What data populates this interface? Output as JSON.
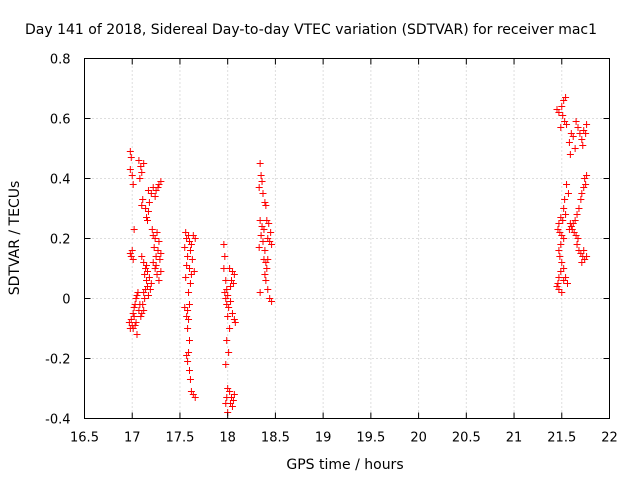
{
  "chart_data": {
    "type": "scatter",
    "title": "Day 141 of 2018, Sidereal Day-to-day VTEC variation (SDTVAR) for receiver mac1",
    "xlabel": "GPS time / hours",
    "ylabel": "SDTVAR / TECUs",
    "xlim": [
      16.5,
      22
    ],
    "ylim": [
      -0.4,
      0.8
    ],
    "xticks": [
      16.5,
      17,
      17.5,
      18,
      18.5,
      19,
      19.5,
      20,
      20.5,
      21,
      21.5,
      22
    ],
    "xtick_labels": [
      "16.5",
      "17",
      "17.5",
      "18",
      "18.5",
      "19",
      "19.5",
      "20",
      "20.5",
      "21",
      "21.5",
      "22"
    ],
    "yticks": [
      -0.4,
      -0.2,
      0,
      0.2,
      0.4,
      0.6,
      0.8
    ],
    "ytick_labels": [
      "-0.4",
      "-0.2",
      "0",
      "0.2",
      "0.4",
      "0.6",
      "0.8"
    ],
    "grid": true,
    "marker": "+",
    "color": "#ff0000",
    "series": [
      {
        "name": "SDTVAR",
        "points": [
          [
            16.98,
            0.49
          ],
          [
            16.99,
            0.47
          ],
          [
            16.98,
            0.43
          ],
          [
            17.0,
            0.41
          ],
          [
            17.01,
            0.38
          ],
          [
            17.07,
            0.46
          ],
          [
            17.09,
            0.44
          ],
          [
            17.1,
            0.42
          ],
          [
            17.12,
            0.45
          ],
          [
            17.08,
            0.4
          ],
          [
            17.11,
            0.33
          ],
          [
            17.1,
            0.31
          ],
          [
            17.14,
            0.3
          ],
          [
            17.17,
            0.29
          ],
          [
            17.15,
            0.27
          ],
          [
            17.16,
            0.26
          ],
          [
            17.18,
            0.32
          ],
          [
            17.17,
            0.36
          ],
          [
            17.2,
            0.35
          ],
          [
            17.22,
            0.37
          ],
          [
            17.25,
            0.36
          ],
          [
            17.27,
            0.37
          ],
          [
            17.28,
            0.38
          ],
          [
            17.3,
            0.39
          ],
          [
            17.24,
            0.34
          ],
          [
            17.21,
            0.23
          ],
          [
            17.22,
            0.21
          ],
          [
            17.24,
            0.2
          ],
          [
            17.26,
            0.22
          ],
          [
            17.28,
            0.19
          ],
          [
            17.23,
            0.17
          ],
          [
            17.25,
            0.14
          ],
          [
            17.27,
            0.16
          ],
          [
            17.29,
            0.13
          ],
          [
            17.3,
            0.15
          ],
          [
            17.22,
            0.12
          ],
          [
            17.24,
            0.1
          ],
          [
            17.26,
            0.08
          ],
          [
            17.28,
            0.06
          ],
          [
            17.3,
            0.09
          ],
          [
            17.2,
            0.05
          ],
          [
            17.25,
            0.11
          ],
          [
            17.18,
            0.07
          ],
          [
            17.19,
            0.03
          ],
          [
            17.17,
            0.01
          ],
          [
            16.99,
            0.14
          ],
          [
            17.0,
            0.16
          ],
          [
            16.98,
            0.15
          ],
          [
            17.02,
            0.23
          ],
          [
            17.01,
            0.13
          ],
          [
            17.1,
            0.14
          ],
          [
            17.12,
            0.12
          ],
          [
            17.14,
            0.1
          ],
          [
            17.13,
            0.08
          ],
          [
            17.15,
            0.11
          ],
          [
            17.16,
            0.09
          ],
          [
            17.15,
            0.06
          ],
          [
            17.16,
            0.04
          ],
          [
            17.14,
            0.03
          ],
          [
            17.12,
            0.02
          ],
          [
            17.13,
            0.0
          ],
          [
            17.11,
            -0.02
          ],
          [
            17.12,
            -0.04
          ],
          [
            17.1,
            -0.05
          ],
          [
            17.09,
            -0.06
          ],
          [
            17.05,
            0.01
          ],
          [
            17.06,
            0.02
          ],
          [
            17.04,
            0.0
          ],
          [
            17.03,
            -0.02
          ],
          [
            17.02,
            -0.03
          ],
          [
            17.01,
            -0.05
          ],
          [
            16.99,
            -0.07
          ],
          [
            17.0,
            -0.09
          ],
          [
            16.98,
            -0.1
          ],
          [
            16.97,
            -0.08
          ],
          [
            17.01,
            -0.1
          ],
          [
            17.03,
            -0.09
          ],
          [
            17.05,
            -0.12
          ],
          [
            17.02,
            -0.06
          ],
          [
            17.04,
            -0.08
          ],
          [
            17.07,
            -0.04
          ],
          [
            17.08,
            -0.02
          ],
          [
            17.56,
            0.22
          ],
          [
            17.57,
            0.2
          ],
          [
            17.59,
            0.21
          ],
          [
            17.6,
            0.19
          ],
          [
            17.62,
            0.18
          ],
          [
            17.64,
            0.21
          ],
          [
            17.66,
            0.2
          ],
          [
            17.61,
            0.16
          ],
          [
            17.63,
            0.13
          ],
          [
            17.58,
            0.14
          ],
          [
            17.55,
            0.17
          ],
          [
            17.57,
            0.11
          ],
          [
            17.6,
            0.1
          ],
          [
            17.62,
            0.08
          ],
          [
            17.65,
            0.09
          ],
          [
            17.56,
            0.07
          ],
          [
            17.61,
            0.05
          ],
          [
            17.59,
            0.02
          ],
          [
            17.6,
            -0.02
          ],
          [
            17.58,
            -0.04
          ],
          [
            17.57,
            -0.06
          ],
          [
            17.59,
            -0.07
          ],
          [
            17.58,
            -0.1
          ],
          [
            17.6,
            -0.14
          ],
          [
            17.59,
            -0.18
          ],
          [
            17.57,
            -0.19
          ],
          [
            17.58,
            -0.21
          ],
          [
            17.6,
            -0.24
          ],
          [
            17.61,
            -0.27
          ],
          [
            17.62,
            -0.31
          ],
          [
            17.64,
            -0.32
          ],
          [
            17.66,
            -0.33
          ],
          [
            17.55,
            -0.03
          ],
          [
            17.96,
            0.18
          ],
          [
            17.97,
            0.14
          ],
          [
            17.96,
            0.1
          ],
          [
            17.98,
            0.06
          ],
          [
            17.99,
            0.03
          ],
          [
            17.97,
            0.02
          ],
          [
            18.0,
            0.01
          ],
          [
            17.98,
            0.0
          ],
          [
            17.99,
            -0.02
          ],
          [
            18.01,
            -0.03
          ],
          [
            18.03,
            0.04
          ],
          [
            18.04,
            0.06
          ],
          [
            18.05,
            0.09
          ],
          [
            18.07,
            0.08
          ],
          [
            18.02,
            0.1
          ],
          [
            18.06,
            0.05
          ],
          [
            18.03,
            -0.01
          ],
          [
            18.05,
            -0.05
          ],
          [
            18.07,
            -0.07
          ],
          [
            18.08,
            -0.08
          ],
          [
            18.0,
            -0.06
          ],
          [
            18.02,
            -0.1
          ],
          [
            17.99,
            -0.14
          ],
          [
            18.01,
            -0.18
          ],
          [
            17.98,
            -0.22
          ],
          [
            18.0,
            -0.3
          ],
          [
            18.02,
            -0.31
          ],
          [
            18.04,
            -0.33
          ],
          [
            17.99,
            -0.33
          ],
          [
            18.03,
            -0.35
          ],
          [
            18.06,
            -0.34
          ],
          [
            18.05,
            -0.36
          ],
          [
            17.98,
            -0.35
          ],
          [
            18.07,
            -0.32
          ],
          [
            18.0,
            -0.38
          ],
          [
            18.34,
            0.45
          ],
          [
            18.35,
            0.41
          ],
          [
            18.36,
            0.39
          ],
          [
            18.33,
            0.37
          ],
          [
            18.37,
            0.35
          ],
          [
            18.39,
            0.32
          ],
          [
            18.4,
            0.31
          ],
          [
            18.34,
            0.26
          ],
          [
            18.36,
            0.24
          ],
          [
            18.38,
            0.23
          ],
          [
            18.41,
            0.26
          ],
          [
            18.43,
            0.25
          ],
          [
            18.45,
            0.22
          ],
          [
            18.42,
            0.2
          ],
          [
            18.44,
            0.19
          ],
          [
            18.46,
            0.18
          ],
          [
            18.35,
            0.21
          ],
          [
            18.37,
            0.19
          ],
          [
            18.33,
            0.17
          ],
          [
            18.39,
            0.16
          ],
          [
            18.38,
            0.13
          ],
          [
            18.4,
            0.12
          ],
          [
            18.42,
            0.13
          ],
          [
            18.41,
            0.1
          ],
          [
            18.39,
            0.08
          ],
          [
            18.4,
            0.06
          ],
          [
            18.42,
            0.03
          ],
          [
            18.44,
            0.0
          ],
          [
            18.46,
            -0.01
          ],
          [
            18.34,
            0.02
          ],
          [
            21.45,
            0.63
          ],
          [
            21.47,
            0.62
          ],
          [
            21.5,
            0.64
          ],
          [
            21.52,
            0.66
          ],
          [
            21.54,
            0.67
          ],
          [
            21.51,
            0.61
          ],
          [
            21.53,
            0.59
          ],
          [
            21.55,
            0.58
          ],
          [
            21.49,
            0.57
          ],
          [
            21.58,
            0.52
          ],
          [
            21.6,
            0.55
          ],
          [
            21.62,
            0.54
          ],
          [
            21.64,
            0.5
          ],
          [
            21.59,
            0.48
          ],
          [
            21.65,
            0.59
          ],
          [
            21.67,
            0.57
          ],
          [
            21.69,
            0.55
          ],
          [
            21.71,
            0.53
          ],
          [
            21.73,
            0.56
          ],
          [
            21.75,
            0.55
          ],
          [
            21.76,
            0.58
          ],
          [
            21.72,
            0.51
          ],
          [
            21.74,
            0.4
          ],
          [
            21.76,
            0.41
          ],
          [
            21.75,
            0.38
          ],
          [
            21.73,
            0.37
          ],
          [
            21.71,
            0.35
          ],
          [
            21.7,
            0.33
          ],
          [
            21.68,
            0.3
          ],
          [
            21.66,
            0.28
          ],
          [
            21.64,
            0.26
          ],
          [
            21.62,
            0.25
          ],
          [
            21.6,
            0.24
          ],
          [
            21.63,
            0.22
          ],
          [
            21.61,
            0.23
          ],
          [
            21.65,
            0.21
          ],
          [
            21.67,
            0.2
          ],
          [
            21.66,
            0.18
          ],
          [
            21.68,
            0.16
          ],
          [
            21.7,
            0.15
          ],
          [
            21.72,
            0.14
          ],
          [
            21.74,
            0.13
          ],
          [
            21.76,
            0.14
          ],
          [
            21.71,
            0.12
          ],
          [
            21.73,
            0.16
          ],
          [
            21.55,
            0.38
          ],
          [
            21.57,
            0.35
          ],
          [
            21.53,
            0.33
          ],
          [
            21.52,
            0.3
          ],
          [
            21.54,
            0.28
          ],
          [
            21.49,
            0.27
          ],
          [
            21.51,
            0.26
          ],
          [
            21.47,
            0.25
          ],
          [
            21.46,
            0.23
          ],
          [
            21.48,
            0.22
          ],
          [
            21.5,
            0.21
          ],
          [
            21.52,
            0.2
          ],
          [
            21.49,
            0.18
          ],
          [
            21.47,
            0.16
          ],
          [
            21.48,
            0.14
          ],
          [
            21.5,
            0.12
          ],
          [
            21.52,
            0.1
          ],
          [
            21.49,
            0.09
          ],
          [
            21.47,
            0.07
          ],
          [
            21.46,
            0.05
          ],
          [
            21.45,
            0.04
          ],
          [
            21.47,
            0.03
          ],
          [
            21.5,
            0.02
          ],
          [
            21.52,
            0.06
          ],
          [
            21.54,
            0.07
          ],
          [
            21.56,
            0.05
          ],
          [
            21.58,
            0.23
          ],
          [
            21.59,
            0.25
          ]
        ]
      }
    ]
  }
}
